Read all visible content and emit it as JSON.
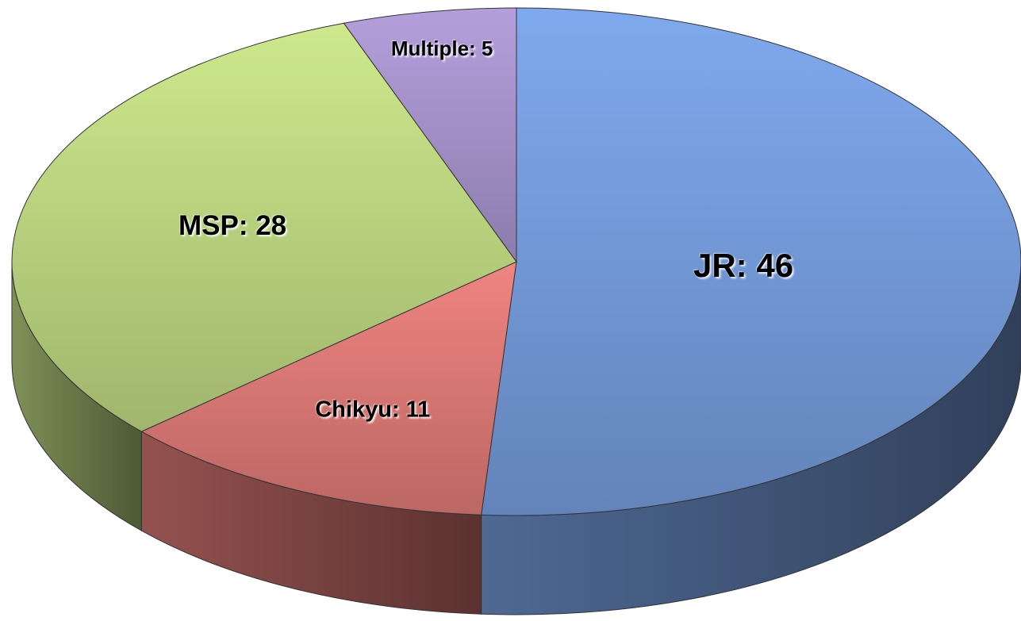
{
  "chart_data": {
    "type": "pie",
    "values": [
      46,
      11,
      28,
      5
    ],
    "value_labels": [
      "JR: 46",
      "Chikyu: 11",
      "MSP: 28",
      "Multiple: 5"
    ],
    "colors": [
      "#7fa9ee",
      "#f08480",
      "#cde98c",
      "#b49fdc"
    ]
  }
}
